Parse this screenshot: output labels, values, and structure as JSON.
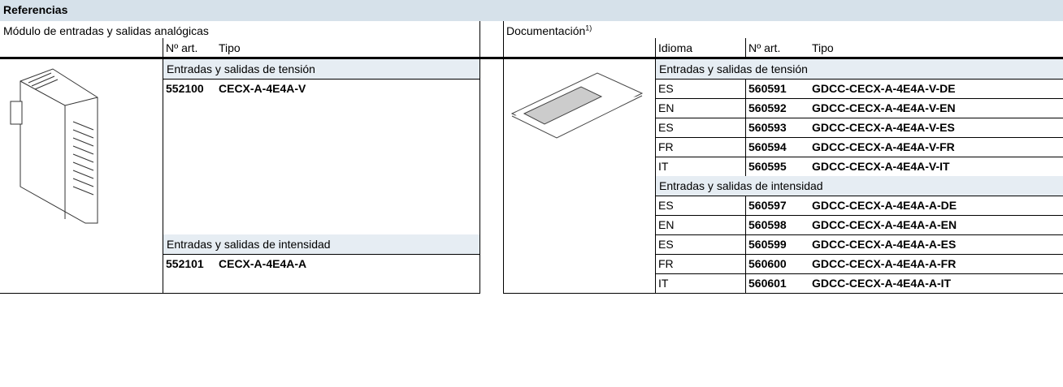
{
  "header": {
    "title": "Referencias"
  },
  "left": {
    "title": "Módulo de entradas y salidas analógicas",
    "columns": [
      "Nº art.",
      "Tipo"
    ],
    "groups": [
      {
        "title": "Entradas y salidas de tensión",
        "rows": [
          [
            "552100",
            "CECX-A-4E4A-V"
          ]
        ]
      },
      {
        "title": "Entradas y salidas de intensidad",
        "rows": [
          [
            "552101",
            "CECX-A-4E4A-A"
          ]
        ]
      }
    ]
  },
  "right": {
    "title": "Documentación",
    "footnote": "1)",
    "columns": [
      "Idioma",
      "Nº art.",
      "Tipo"
    ],
    "groups": [
      {
        "title": "Entradas y salidas de tensión",
        "rows": [
          [
            "ES",
            "560591",
            "GDCC-CECX-A-4E4A-V-DE"
          ],
          [
            "EN",
            "560592",
            "GDCC-CECX-A-4E4A-V-EN"
          ],
          [
            "ES",
            "560593",
            "GDCC-CECX-A-4E4A-V-ES"
          ],
          [
            "FR",
            "560594",
            "GDCC-CECX-A-4E4A-V-FR"
          ],
          [
            "IT",
            "560595",
            "GDCC-CECX-A-4E4A-V-IT"
          ]
        ]
      },
      {
        "title": "Entradas y salidas de intensidad",
        "rows": [
          [
            "ES",
            "560597",
            "GDCC-CECX-A-4E4A-A-DE"
          ],
          [
            "EN",
            "560598",
            "GDCC-CECX-A-4E4A-A-EN"
          ],
          [
            "ES",
            "560599",
            "GDCC-CECX-A-4E4A-A-ES"
          ],
          [
            "FR",
            "560600",
            "GDCC-CECX-A-4E4A-A-FR"
          ],
          [
            "IT",
            "560601",
            "GDCC-CECX-A-4E4A-A-IT"
          ]
        ]
      }
    ]
  }
}
